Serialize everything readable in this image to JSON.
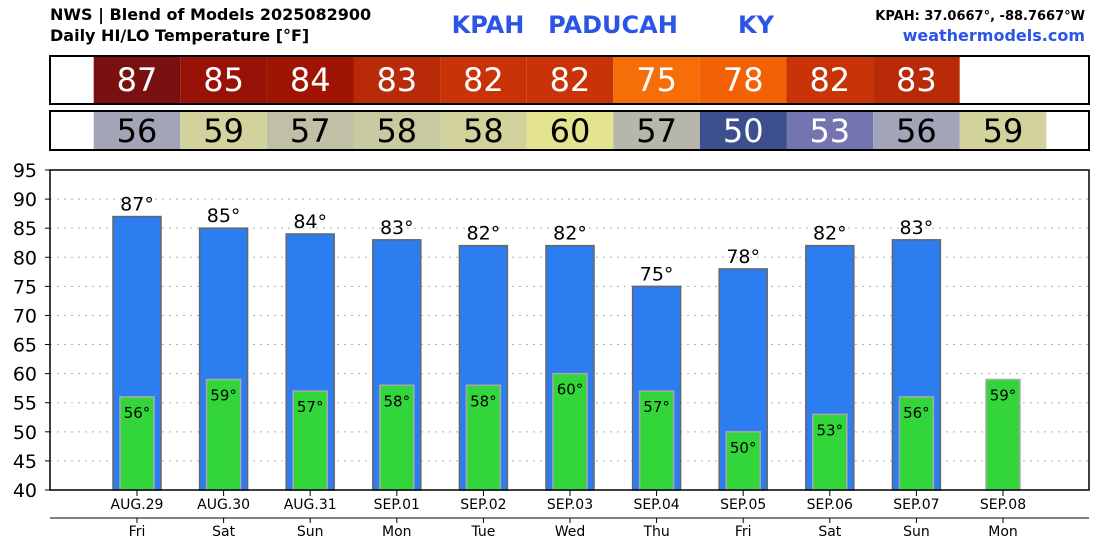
{
  "header": {
    "source_line": "NWS | Blend of Models 2025082900",
    "product_line": "Daily HI/LO Temperature [°F]",
    "station_id": "KPAH",
    "station_name": "PADUCAH",
    "state": "KY",
    "coords": "KPAH: 37.0667°, -88.7667°W",
    "website": "weathermodels.com"
  },
  "colors": {
    "title_blue": "#2a55e6",
    "high_bar": "#2b7df0",
    "low_bar": "#33d63a",
    "high_cells": [
      "#7b1010",
      "#981208",
      "#a01404",
      "#b82a08",
      "#c83408",
      "#c83408",
      "#f56e08",
      "#f26106",
      "#c83408",
      "#b82a08"
    ],
    "low_cells": [
      "#a4a4b8",
      "#d2d29c",
      "#c0c0a6",
      "#cacaa2",
      "#d2d29c",
      "#e4e48e",
      "#b6b6aa",
      "#3d4f8f",
      "#7474b0",
      "#a4a4b8",
      "#d2d29c"
    ]
  },
  "chart_data": {
    "type": "bar",
    "categories": [
      "AUG.29",
      "AUG.30",
      "AUG.31",
      "SEP.01",
      "SEP.02",
      "SEP.03",
      "SEP.04",
      "SEP.05",
      "SEP.06",
      "SEP.07",
      "SEP.08"
    ],
    "weekdays": [
      "Fri",
      "Sat",
      "Sun",
      "Mon",
      "Tue",
      "Wed",
      "Thu",
      "Fri",
      "Sat",
      "Sun",
      "Mon"
    ],
    "series": [
      {
        "key": "high",
        "values": [
          87,
          85,
          84,
          83,
          82,
          82,
          75,
          78,
          82,
          83,
          null
        ]
      },
      {
        "key": "low",
        "values": [
          56,
          59,
          57,
          58,
          58,
          60,
          57,
          50,
          53,
          56,
          59
        ]
      }
    ],
    "ylim": [
      40,
      95
    ],
    "yticks": [
      40,
      45,
      50,
      55,
      60,
      65,
      70,
      75,
      80,
      85,
      90,
      95
    ],
    "grid": true,
    "degree_suffix": "°"
  }
}
